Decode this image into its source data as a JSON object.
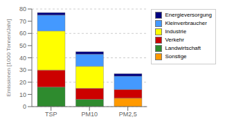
{
  "chart_data": {
    "type": "bar",
    "stacked": true,
    "ylabel": "Emissionen [1000 Tonnen/Jahr]",
    "categories": [
      "TSP",
      "PM10",
      "PM2,5"
    ],
    "series": [
      {
        "name": "Sonstige",
        "color": "#FF9900",
        "values": [
          0,
          0,
          7
        ]
      },
      {
        "name": "Landwirtschaft",
        "color": "#2E8B2E",
        "values": [
          16,
          6,
          0
        ]
      },
      {
        "name": "Verkehr",
        "color": "#CC0000",
        "values": [
          14,
          9,
          7
        ]
      },
      {
        "name": "Industrie",
        "color": "#FFFF00",
        "values": [
          32,
          18,
          0
        ]
      },
      {
        "name": "Kleinverbraucher",
        "color": "#4499FF",
        "values": [
          13,
          10,
          11
        ]
      },
      {
        "name": "Energieversorgung",
        "color": "#000080",
        "values": [
          2,
          2,
          2
        ]
      }
    ],
    "ylim": [
      0,
      80
    ],
    "yticks": [
      0,
      10,
      20,
      30,
      40,
      50,
      60,
      70,
      80
    ],
    "grid": true,
    "legend": "right"
  }
}
